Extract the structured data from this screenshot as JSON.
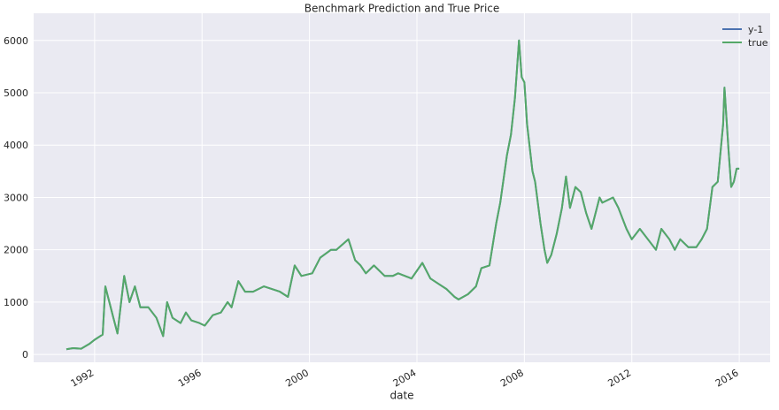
{
  "chart_data": {
    "type": "line",
    "title": "Benchmark Prediction and True Price",
    "x_label": "date",
    "x": [
      1990.95,
      1991.2,
      1991.5,
      1991.8,
      1992.0,
      1992.3,
      1992.4,
      1992.5,
      1992.7,
      1992.85,
      1993.1,
      1993.3,
      1993.5,
      1993.7,
      1994.0,
      1994.3,
      1994.55,
      1994.7,
      1994.9,
      1995.2,
      1995.4,
      1995.6,
      1995.9,
      1996.1,
      1996.4,
      1996.7,
      1996.95,
      1997.1,
      1997.35,
      1997.6,
      1997.9,
      1998.3,
      1998.6,
      1998.9,
      1999.2,
      1999.45,
      1999.7,
      2000.1,
      2000.4,
      2000.8,
      2001.0,
      2001.45,
      2001.7,
      2001.9,
      2002.1,
      2002.4,
      2002.8,
      2003.1,
      2003.3,
      2003.8,
      2004.2,
      2004.5,
      2004.8,
      2005.1,
      2005.4,
      2005.55,
      2005.9,
      2006.2,
      2006.4,
      2006.7,
      2006.95,
      2007.1,
      2007.35,
      2007.5,
      2007.65,
      2007.8,
      2007.9,
      2008.0,
      2008.1,
      2008.3,
      2008.4,
      2008.6,
      2008.75,
      2008.85,
      2009.0,
      2009.2,
      2009.4,
      2009.55,
      2009.7,
      2009.9,
      2010.1,
      2010.3,
      2010.5,
      2010.8,
      2010.9,
      2011.3,
      2011.5,
      2011.8,
      2012.0,
      2012.3,
      2012.6,
      2012.9,
      2013.1,
      2013.4,
      2013.6,
      2013.8,
      2014.1,
      2014.4,
      2014.6,
      2014.8,
      2015.0,
      2015.2,
      2015.4,
      2015.45,
      2015.6,
      2015.7,
      2015.8,
      2015.9,
      2016.0
    ],
    "series": [
      {
        "name": "y-1",
        "color": "#4C72B0",
        "values": [
          100,
          120,
          110,
          200,
          280,
          380,
          1300,
          1100,
          700,
          400,
          1500,
          1000,
          1300,
          900,
          900,
          700,
          350,
          1000,
          700,
          600,
          800,
          650,
          600,
          550,
          750,
          800,
          1000,
          900,
          1400,
          1200,
          1200,
          1300,
          1250,
          1200,
          1100,
          1700,
          1500,
          1550,
          1850,
          2000,
          2000,
          2200,
          1800,
          1700,
          1550,
          1700,
          1500,
          1500,
          1550,
          1450,
          1750,
          1450,
          1350,
          1250,
          1100,
          1050,
          1150,
          1300,
          1650,
          1700,
          2500,
          2900,
          3800,
          4200,
          4900,
          6000,
          5300,
          5200,
          4400,
          3500,
          3300,
          2500,
          2000,
          1750,
          1900,
          2300,
          2800,
          3400,
          2800,
          3200,
          3100,
          2700,
          2400,
          3000,
          2900,
          3000,
          2800,
          2400,
          2200,
          2400,
          2200,
          2000,
          2400,
          2200,
          2000,
          2200,
          2050,
          2050,
          2200,
          2400,
          3200,
          3300,
          4400,
          5100,
          3900,
          3200,
          3300,
          3550,
          3550
        ]
      },
      {
        "name": "true",
        "color": "#55A868",
        "values": [
          100,
          120,
          110,
          200,
          280,
          380,
          1300,
          1100,
          700,
          400,
          1500,
          1000,
          1300,
          900,
          900,
          700,
          350,
          1000,
          700,
          600,
          800,
          650,
          600,
          550,
          750,
          800,
          1000,
          900,
          1400,
          1200,
          1200,
          1300,
          1250,
          1200,
          1100,
          1700,
          1500,
          1550,
          1850,
          2000,
          2000,
          2200,
          1800,
          1700,
          1550,
          1700,
          1500,
          1500,
          1550,
          1450,
          1750,
          1450,
          1350,
          1250,
          1100,
          1050,
          1150,
          1300,
          1650,
          1700,
          2500,
          2900,
          3800,
          4200,
          4900,
          6000,
          5300,
          5200,
          4400,
          3500,
          3300,
          2500,
          2000,
          1750,
          1900,
          2300,
          2800,
          3400,
          2800,
          3200,
          3100,
          2700,
          2400,
          3000,
          2900,
          3000,
          2800,
          2400,
          2200,
          2400,
          2200,
          2000,
          2400,
          2200,
          2000,
          2200,
          2050,
          2050,
          2200,
          2400,
          3200,
          3300,
          4400,
          5100,
          3900,
          3200,
          3300,
          3550,
          3550
        ]
      }
    ],
    "xlim": [
      1989.73,
      2017.15
    ],
    "xticks": [
      1992,
      1996,
      2000,
      2004,
      2008,
      2012,
      2016
    ],
    "ylim": [
      -150,
      6520
    ],
    "yticks": [
      0,
      1000,
      2000,
      3000,
      4000,
      5000,
      6000
    ],
    "grid": true,
    "legend": "upper right"
  }
}
